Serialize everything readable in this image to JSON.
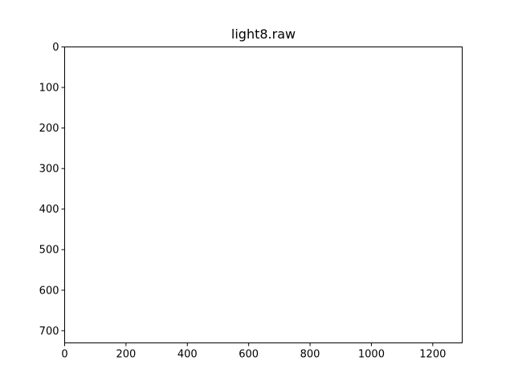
{
  "chart_data": {
    "type": "heatmap",
    "title": "light8.raw",
    "xlabel": "",
    "ylabel": "",
    "xlim": [
      0,
      1296
    ],
    "ylim": [
      730,
      0
    ],
    "x_ticks": [
      0,
      200,
      400,
      600,
      800,
      1000,
      1200
    ],
    "y_ticks": [
      0,
      100,
      200,
      300,
      400,
      500,
      600,
      700
    ],
    "x_tick_labels": [
      "0",
      "200",
      "400",
      "600",
      "800",
      "1000",
      "1200"
    ],
    "y_tick_labels": [
      "0",
      "100",
      "200",
      "300",
      "400",
      "500",
      "600",
      "700"
    ],
    "grid": false,
    "image_fill": "#ffffff",
    "frame_color": "#000000",
    "tick_label_color": "#000000"
  }
}
